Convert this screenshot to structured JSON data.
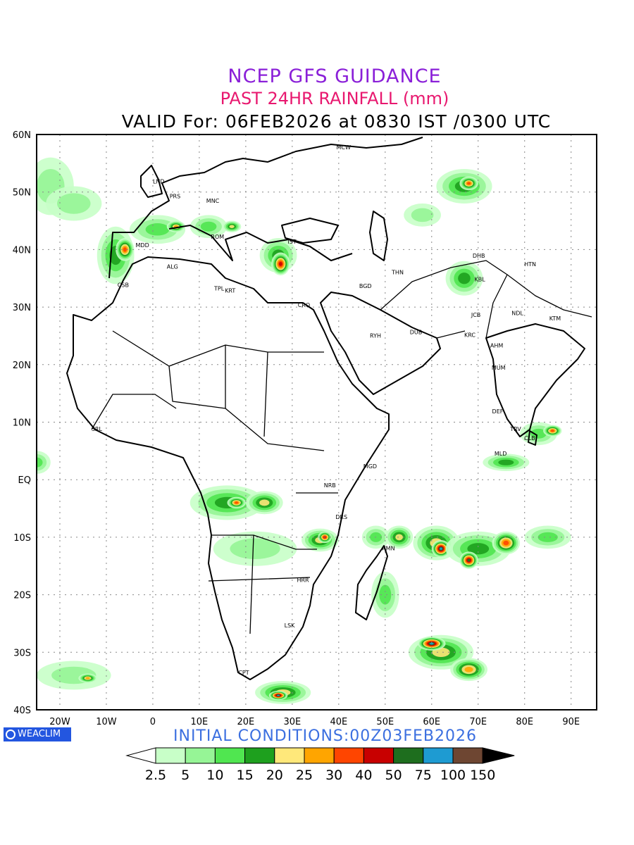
{
  "header": {
    "title": "NCEP GFS GUIDANCE",
    "subtitle": "PAST 24HR RAINFALL (mm)",
    "valid": "VALID For: 06FEB2026 at 0830 IST /0300 UTC"
  },
  "footer": {
    "initial_conditions": "INITIAL CONDITIONS:00Z03FEB2026",
    "logo_text": "WEACLIM"
  },
  "axes": {
    "lat_labels": [
      "60N",
      "50N",
      "40N",
      "30N",
      "20N",
      "10N",
      "EQ",
      "10S",
      "20S",
      "30S",
      "40S"
    ],
    "lon_labels": [
      "20W",
      "10W",
      "0",
      "10E",
      "20E",
      "30E",
      "40E",
      "50E",
      "60E",
      "70E",
      "80E",
      "90E"
    ]
  },
  "colorbar": {
    "labels": [
      "2.5",
      "5",
      "10",
      "15",
      "20",
      "25",
      "30",
      "40",
      "50",
      "75",
      "100",
      "150"
    ],
    "colors": [
      "#c8ffc8",
      "#96f596",
      "#50e650",
      "#1ea01e",
      "#ffe87a",
      "#ffa500",
      "#ff4500",
      "#c80000",
      "#1e6e1e",
      "#1e9bd2",
      "#6e4632"
    ]
  },
  "stations": [
    {
      "name": "LND",
      "lon": 0,
      "lat": 51.5
    },
    {
      "name": "PRS",
      "lon": 3.6,
      "lat": 48.9
    },
    {
      "name": "MNC",
      "lon": 11.5,
      "lat": 48.1
    },
    {
      "name": "MCW",
      "lon": 39.5,
      "lat": 57.4
    },
    {
      "name": "ROM",
      "lon": 12.5,
      "lat": 41.9
    },
    {
      "name": "MDD",
      "lon": -3.7,
      "lat": 40.4
    },
    {
      "name": "IST",
      "lon": 29,
      "lat": 41
    },
    {
      "name": "ALG",
      "lon": 3,
      "lat": 36.7
    },
    {
      "name": "CSB",
      "lon": -7.6,
      "lat": 33.5
    },
    {
      "name": "TPL",
      "lon": 13.2,
      "lat": 32.9
    },
    {
      "name": "KRT",
      "lon": 15.5,
      "lat": 32.5
    },
    {
      "name": "CRO",
      "lon": 31.2,
      "lat": 30
    },
    {
      "name": "BGD",
      "lon": 44.4,
      "lat": 33.3
    },
    {
      "name": "THN",
      "lon": 51.4,
      "lat": 35.7
    },
    {
      "name": "DHB",
      "lon": 68.8,
      "lat": 38.6
    },
    {
      "name": "HTN",
      "lon": 79.9,
      "lat": 37.1
    },
    {
      "name": "KBL",
      "lon": 69.2,
      "lat": 34.5
    },
    {
      "name": "JCB",
      "lon": 68.5,
      "lat": 28.3
    },
    {
      "name": "NDL",
      "lon": 77.2,
      "lat": 28.6
    },
    {
      "name": "KTM",
      "lon": 85.3,
      "lat": 27.7
    },
    {
      "name": "RYH",
      "lon": 46.7,
      "lat": 24.7
    },
    {
      "name": "DUB",
      "lon": 55.3,
      "lat": 25.3
    },
    {
      "name": "KRC",
      "lon": 67,
      "lat": 24.8
    },
    {
      "name": "AHM",
      "lon": 72.6,
      "lat": 23
    },
    {
      "name": "MUM",
      "lon": 72.9,
      "lat": 19.1
    },
    {
      "name": "DEF",
      "lon": 73,
      "lat": 11.5
    },
    {
      "name": "TRV",
      "lon": 76.9,
      "lat": 8.5
    },
    {
      "name": "CLB",
      "lon": 79.9,
      "lat": 6.9
    },
    {
      "name": "MLD",
      "lon": 73.5,
      "lat": 4.2
    },
    {
      "name": "SRL",
      "lon": -13.2,
      "lat": 8.5
    },
    {
      "name": "MGD",
      "lon": 45.3,
      "lat": 2
    },
    {
      "name": "NRB",
      "lon": 36.8,
      "lat": -1.3
    },
    {
      "name": "DRS",
      "lon": 39.3,
      "lat": -6.8
    },
    {
      "name": "AMN",
      "lon": 49.3,
      "lat": -12.3
    },
    {
      "name": "HRR",
      "lon": 31,
      "lat": -17.8
    },
    {
      "name": "LSK",
      "lon": 28.3,
      "lat": -25.7
    },
    {
      "name": "CPT",
      "lon": 18.4,
      "lat": -33.9
    }
  ],
  "rain_areas": [
    {
      "lon": -22,
      "lat": 51,
      "rx": 5,
      "ry": 5,
      "level": 1
    },
    {
      "lon": -17,
      "lat": 48,
      "rx": 6,
      "ry": 3,
      "level": 1
    },
    {
      "lon": -8,
      "lat": 39,
      "rx": 4,
      "ry": 5,
      "level": 3
    },
    {
      "lon": -6,
      "lat": 40,
      "rx": 2,
      "ry": 2,
      "level": 6
    },
    {
      "lon": 1,
      "lat": 43.5,
      "rx": 6,
      "ry": 2.5,
      "level": 2
    },
    {
      "lon": 5,
      "lat": 44,
      "rx": 2,
      "ry": 1,
      "level": 5
    },
    {
      "lon": 12,
      "lat": 44,
      "rx": 4,
      "ry": 2,
      "level": 2
    },
    {
      "lon": 17,
      "lat": 44,
      "rx": 2,
      "ry": 1,
      "level": 4
    },
    {
      "lon": 27,
      "lat": 39,
      "rx": 4,
      "ry": 3,
      "level": 3
    },
    {
      "lon": 27.5,
      "lat": 37.5,
      "rx": 2,
      "ry": 2,
      "level": 7
    },
    {
      "lon": 67,
      "lat": 51,
      "rx": 6,
      "ry": 3,
      "level": 3
    },
    {
      "lon": 68,
      "lat": 51.5,
      "rx": 2,
      "ry": 1.2,
      "level": 6
    },
    {
      "lon": 58,
      "lat": 46,
      "rx": 4,
      "ry": 2,
      "level": 1
    },
    {
      "lon": 67,
      "lat": 35,
      "rx": 4,
      "ry": 3,
      "level": 3
    },
    {
      "lon": -25,
      "lat": 3,
      "rx": 3,
      "ry": 2,
      "level": 2
    },
    {
      "lon": 16,
      "lat": -4,
      "rx": 8,
      "ry": 3,
      "level": 3
    },
    {
      "lon": 18,
      "lat": -4,
      "rx": 2,
      "ry": 1,
      "level": 6
    },
    {
      "lon": 24,
      "lat": -4,
      "rx": 4,
      "ry": 2,
      "level": 4
    },
    {
      "lon": 22,
      "lat": -12,
      "rx": 9,
      "ry": 3,
      "level": 1
    },
    {
      "lon": 36,
      "lat": -10.5,
      "rx": 4,
      "ry": 2,
      "level": 4
    },
    {
      "lon": 37,
      "lat": -10,
      "rx": 1.5,
      "ry": 1,
      "level": 7
    },
    {
      "lon": 50,
      "lat": -20,
      "rx": 3,
      "ry": 4,
      "level": 2
    },
    {
      "lon": 48,
      "lat": -10,
      "rx": 3,
      "ry": 2,
      "level": 2
    },
    {
      "lon": 53,
      "lat": -10,
      "rx": 3,
      "ry": 2,
      "level": 4
    },
    {
      "lon": 61,
      "lat": -11,
      "rx": 5,
      "ry": 3,
      "level": 4
    },
    {
      "lon": 62,
      "lat": -12,
      "rx": 2,
      "ry": 1.5,
      "level": 9
    },
    {
      "lon": 70,
      "lat": -12,
      "rx": 7,
      "ry": 3,
      "level": 3
    },
    {
      "lon": 68,
      "lat": -14,
      "rx": 2,
      "ry": 1.5,
      "level": 8
    },
    {
      "lon": 76,
      "lat": -11,
      "rx": 3,
      "ry": 2,
      "level": 6
    },
    {
      "lon": 85,
      "lat": -10,
      "rx": 5,
      "ry": 2,
      "level": 2
    },
    {
      "lon": 76,
      "lat": 3,
      "rx": 5,
      "ry": 1.5,
      "level": 3
    },
    {
      "lon": 83,
      "lat": 8,
      "rx": 4,
      "ry": 2,
      "level": 2
    },
    {
      "lon": 86,
      "lat": 8.5,
      "rx": 2,
      "ry": 1,
      "level": 6
    },
    {
      "lon": 62,
      "lat": -30,
      "rx": 7,
      "ry": 3,
      "level": 4
    },
    {
      "lon": 60,
      "lat": -28.5,
      "rx": 3,
      "ry": 1.2,
      "level": 9
    },
    {
      "lon": 68,
      "lat": -33,
      "rx": 4,
      "ry": 2,
      "level": 5
    },
    {
      "lon": 28,
      "lat": -37,
      "rx": 6,
      "ry": 2,
      "level": 4
    },
    {
      "lon": 27,
      "lat": -37.5,
      "rx": 2,
      "ry": 0.8,
      "level": 9
    },
    {
      "lon": -17,
      "lat": -34,
      "rx": 8,
      "ry": 2.5,
      "level": 1
    },
    {
      "lon": -14,
      "lat": -34.5,
      "rx": 2,
      "ry": 0.8,
      "level": 5
    }
  ]
}
